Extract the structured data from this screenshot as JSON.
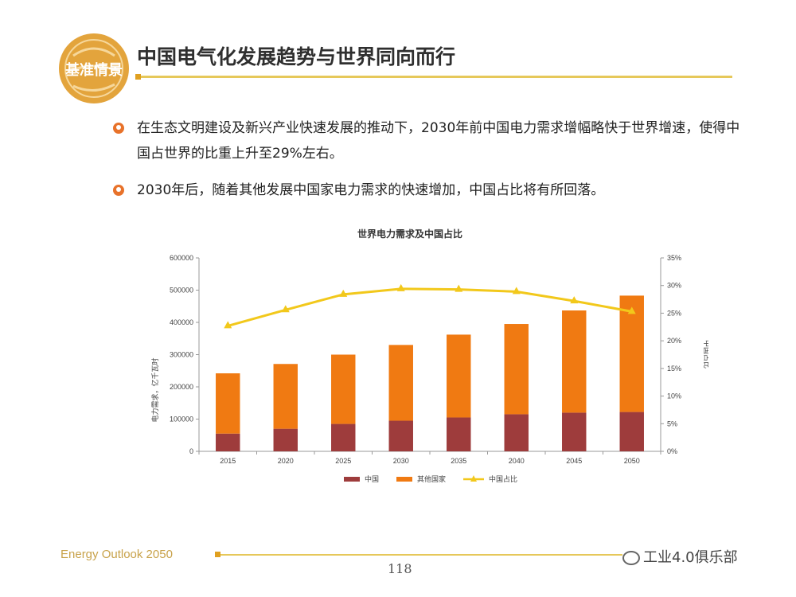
{
  "logo": {
    "text": "基准情景"
  },
  "slide_title": "中国电气化发展趋势与世界同向而行",
  "bullets": [
    {
      "text": "在生态文明建设及新兴产业快速发展的推动下，2030年前中国电力需求增幅略快于世界增速，使得中国占世界的比重上升至29%左右。"
    },
    {
      "text": "2030年后，随着其他发展中国家电力需求的快速增加，中国占比将有所回落。"
    }
  ],
  "footer": {
    "left": "Energy Outlook 2050",
    "page_number": "118",
    "watermark": "工业4.0俱乐部"
  },
  "colors": {
    "china": "#9e3c3c",
    "others": "#f07a12",
    "share": "#f2c81b",
    "accent": "#e8722a"
  },
  "chart_data": {
    "type": "bar",
    "stacked": true,
    "title": "世界电力需求及中国占比",
    "ylabel": "电力需求，亿千瓦时",
    "y2label": "中国占比",
    "categories": [
      "2015",
      "2020",
      "2025",
      "2030",
      "2035",
      "2040",
      "2045",
      "2050"
    ],
    "ylim": [
      0,
      600000
    ],
    "y_ticks": [
      "0",
      "100000",
      "200000",
      "300000",
      "400000",
      "500000",
      "600000"
    ],
    "y2lim": [
      0,
      35
    ],
    "y2_ticks": [
      "0%",
      "5%",
      "10%",
      "15%",
      "20%",
      "25%",
      "30%",
      "35%"
    ],
    "series": [
      {
        "name": "中国",
        "type": "bar",
        "values": [
          55000,
          70000,
          85000,
          95000,
          105000,
          115000,
          120000,
          122000
        ]
      },
      {
        "name": "其他国家",
        "type": "bar",
        "values": [
          187000,
          201000,
          215000,
          235000,
          257000,
          280000,
          317000,
          361000
        ]
      },
      {
        "name": "中国占比",
        "type": "line",
        "axis": "right",
        "values": [
          22.7,
          25.6,
          28.4,
          29.4,
          29.3,
          28.9,
          27.2,
          25.3
        ]
      }
    ],
    "legend_position": "bottom",
    "grid": false
  }
}
